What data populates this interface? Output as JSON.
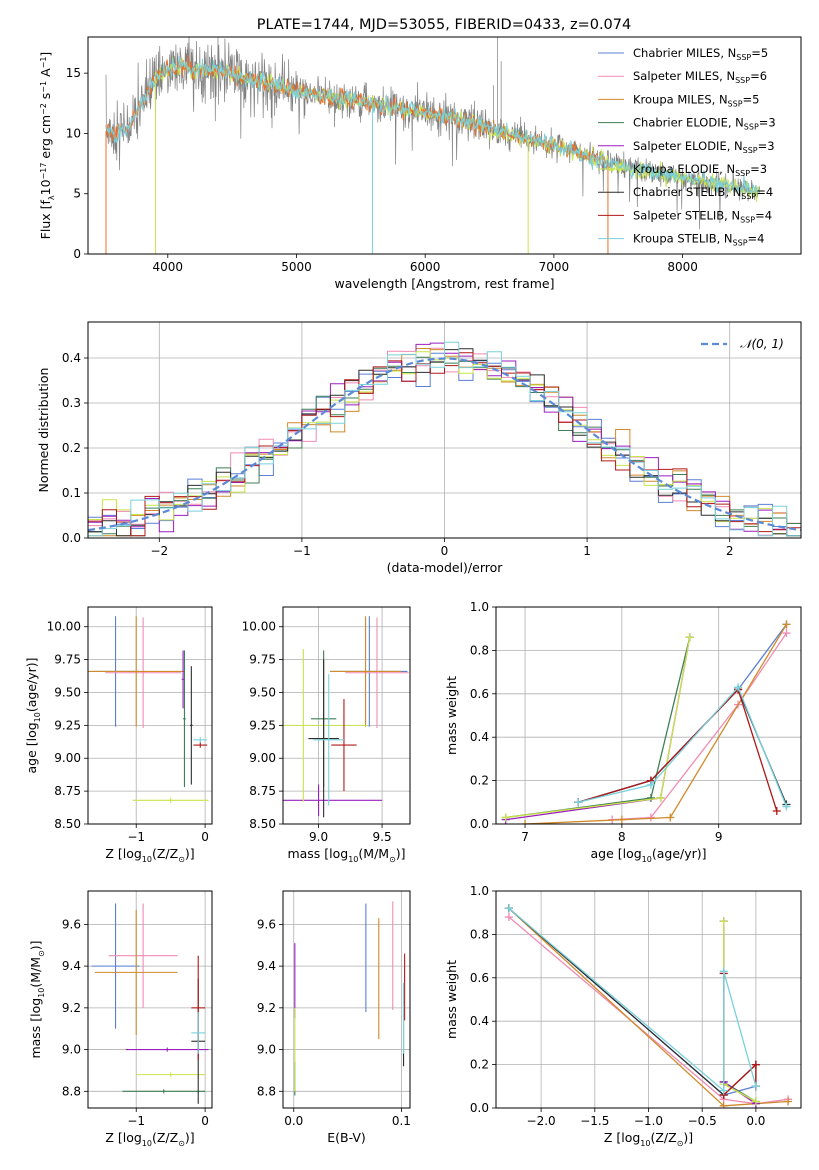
{
  "figure_title": "PLATE=1744, MJD=53055, FIBERID=0433, z=0.074",
  "colors": {
    "Chabrier MILES": "#5b7fd6",
    "Salpeter MILES": "#f08bb3",
    "Kroupa MILES": "#d08a2a",
    "Chabrier ELODIE": "#3f7f55",
    "Salpeter ELODIE": "#9b1fbf",
    "Kroupa ELODIE": "#c9e34a",
    "Chabrier STELIB": "#2d2d2d",
    "Salpeter STELIB": "#b01818",
    "Kroupa STELIB": "#79d1dc",
    "data": "#808080",
    "fit_main": "#e8702a",
    "normal_curve": "#5b8ad6"
  },
  "chart_data": [
    {
      "id": "spectrum",
      "type": "line",
      "title": "PLATE=1744, MJD=53055, FIBERID=0433, z=0.074",
      "xlabel": "wavelength [Angstrom, rest frame]",
      "ylabel": "Flux [fλ10⁻¹⁷ erg cm⁻² s⁻¹ A⁻¹]",
      "xlim": [
        3380,
        8920
      ],
      "ylim": [
        0,
        18
      ],
      "xticks": [
        4000,
        5000,
        6000,
        7000,
        8000
      ],
      "yticks": [
        0,
        5,
        10,
        15
      ],
      "grid": false,
      "legend_position": "top-right",
      "legend": [
        {
          "label": "Chabrier MILES, N",
          "sub": "SSP",
          "value": "=5"
        },
        {
          "label": "Salpeter MILES, N",
          "sub": "SSP",
          "value": "=6"
        },
        {
          "label": "Kroupa MILES, N",
          "sub": "SSP",
          "value": "=5"
        },
        {
          "label": "Chabrier ELODIE, N",
          "sub": "SSP",
          "value": "=3"
        },
        {
          "label": "Salpeter ELODIE, N",
          "sub": "SSP",
          "value": "=3"
        },
        {
          "label": "Kroupa ELODIE, N",
          "sub": "SSP",
          "value": "=3"
        },
        {
          "label": "Chabrier STELIB, N",
          "sub": "SSP",
          "value": "=4"
        },
        {
          "label": "Salpeter STELIB, N",
          "sub": "SSP",
          "value": "=4"
        },
        {
          "label": "Kroupa STELIB, N",
          "sub": "SSP",
          "value": "=4"
        }
      ],
      "continuum": {
        "x": [
          3520,
          3600,
          3700,
          3800,
          3900,
          4000,
          4100,
          4200,
          4400,
          4600,
          4800,
          5000,
          5200,
          5400,
          5600,
          5800,
          6000,
          6200,
          6400,
          6600,
          6800,
          7000,
          7200,
          7400,
          7600,
          7800,
          8000,
          8200,
          8400,
          8600
        ],
        "y": [
          10.2,
          10.0,
          10.6,
          12.5,
          14.5,
          15.3,
          15.6,
          15.2,
          15.2,
          14.6,
          14.2,
          13.5,
          13.0,
          12.8,
          12.4,
          12.1,
          11.7,
          11.3,
          10.8,
          10.1,
          9.5,
          9.0,
          8.4,
          7.6,
          7.0,
          6.7,
          6.4,
          6.0,
          5.6,
          5.2
        ]
      }
    },
    {
      "id": "residual_histogram",
      "type": "line",
      "xlabel": "(data-model)/error",
      "ylabel": "Normed distribution",
      "xlim": [
        -2.5,
        2.5
      ],
      "ylim": [
        0,
        0.48
      ],
      "xticks": [
        -2,
        -1,
        0,
        1,
        2
      ],
      "yticks": [
        0.0,
        0.1,
        0.2,
        0.3,
        0.4
      ],
      "grid": true,
      "legend_position": "top-right",
      "legend": [
        {
          "label": "𝒩(0, 1)"
        }
      ],
      "bin_width": 0.1,
      "normal_curve": {
        "mean": 0,
        "sigma": 1
      }
    },
    {
      "id": "age_vs_Z",
      "type": "scatter",
      "xlabel": "Z [log₁₀(Z/Z⊙)]",
      "ylabel": "age  [log₁₀(age/yr)]",
      "xlim": [
        -1.7,
        0.1
      ],
      "ylim": [
        8.5,
        10.15
      ],
      "xticks": [
        -1,
        0
      ],
      "yticks": [
        8.5,
        8.75,
        9.0,
        9.25,
        9.5,
        9.75,
        10.0
      ],
      "grid": true,
      "points": [
        {
          "model": "Chabrier MILES",
          "x": -1.3,
          "xerr": 0.35,
          "y": 9.66,
          "yerr": 0.42
        },
        {
          "model": "Salpeter MILES",
          "x": -0.9,
          "xerr": 0.55,
          "y": 9.65,
          "yerr": 0.42
        },
        {
          "model": "Kroupa MILES",
          "x": -1.0,
          "xerr": 0.7,
          "y": 9.66,
          "yerr": 0.42
        },
        {
          "model": "Chabrier ELODIE",
          "x": -0.3,
          "xerr": 0.02,
          "y": 9.3,
          "yerr": 0.52
        },
        {
          "model": "Salpeter ELODIE",
          "x": -0.32,
          "xerr": 0.02,
          "y": 9.6,
          "yerr": 0.22
        },
        {
          "model": "Kroupa ELODIE",
          "x": -0.5,
          "xerr": 0.55,
          "y": 8.68,
          "yerr": 0.02
        },
        {
          "model": "Chabrier STELIB",
          "x": -0.2,
          "xerr": 0.02,
          "y": 9.25,
          "yerr": 0.45
        },
        {
          "model": "Salpeter STELIB",
          "x": -0.07,
          "xerr": 0.1,
          "y": 9.1,
          "yerr": 0.02
        },
        {
          "model": "Kroupa STELIB",
          "x": -0.07,
          "xerr": 0.1,
          "y": 9.14,
          "yerr": 0.02
        }
      ]
    },
    {
      "id": "age_vs_mass",
      "type": "scatter",
      "xlabel": "mass [log₁₀(M/M⊙)]",
      "ylabel": "",
      "xlim": [
        8.72,
        9.72
      ],
      "ylim": [
        8.5,
        10.15
      ],
      "xticks": [
        9.0,
        9.5
      ],
      "yticks": [
        8.5,
        8.75,
        9.0,
        9.25,
        9.5,
        9.75,
        10.0
      ],
      "grid": true,
      "points": [
        {
          "model": "Chabrier MILES",
          "x": 9.4,
          "xerr": 0.3,
          "y": 9.66,
          "yerr": 0.42
        },
        {
          "model": "Salpeter MILES",
          "x": 9.46,
          "xerr": 0.25,
          "y": 9.65,
          "yerr": 0.42
        },
        {
          "model": "Kroupa MILES",
          "x": 9.37,
          "xerr": 0.28,
          "y": 9.66,
          "yerr": 0.42
        },
        {
          "model": "Chabrier ELODIE",
          "x": 9.04,
          "xerr": 0.1,
          "y": 9.3,
          "yerr": 0.52
        },
        {
          "model": "Salpeter ELODIE",
          "x": 9.0,
          "xerr": 0.5,
          "y": 8.68,
          "yerr": 0.12
        },
        {
          "model": "Kroupa ELODIE",
          "x": 8.88,
          "xerr": 0.5,
          "y": 9.25,
          "yerr": 0.58
        },
        {
          "model": "Chabrier STELIB",
          "x": 9.04,
          "xerr": 0.12,
          "y": 9.15,
          "yerr": 0.6
        },
        {
          "model": "Salpeter STELIB",
          "x": 9.2,
          "xerr": 0.1,
          "y": 9.1,
          "yerr": 0.35
        },
        {
          "model": "Kroupa STELIB",
          "x": 9.08,
          "xerr": 0.12,
          "y": 9.14,
          "yerr": 0.5
        }
      ]
    },
    {
      "id": "mass_weight_vs_age",
      "type": "line",
      "xlabel": "age  [log₁₀(age/yr)]",
      "ylabel": "mass weight",
      "xlim": [
        6.7,
        9.85
      ],
      "ylim": [
        0,
        1.0
      ],
      "xticks": [
        7,
        8,
        9
      ],
      "yticks": [
        0.0,
        0.2,
        0.4,
        0.6,
        0.8,
        1.0
      ],
      "grid": true,
      "series": [
        {
          "model": "Chabrier MILES",
          "x": [
            7.55,
            8.3,
            9.2,
            9.7
          ],
          "y": [
            0.1,
            0.2,
            0.62,
            0.92
          ]
        },
        {
          "model": "Salpeter MILES",
          "x": [
            7.9,
            8.3,
            9.2,
            9.7
          ],
          "y": [
            0.02,
            0.03,
            0.55,
            0.88
          ]
        },
        {
          "model": "Kroupa MILES",
          "x": [
            7.0,
            8.0,
            8.5,
            9.7
          ],
          "y": [
            0.0,
            0.02,
            0.03,
            0.92
          ]
        },
        {
          "model": "Chabrier ELODIE",
          "x": [
            6.8,
            8.3,
            8.7
          ],
          "y": [
            0.03,
            0.12,
            0.86
          ]
        },
        {
          "model": "Salpeter ELODIE",
          "x": [
            6.8,
            8.4,
            8.7
          ],
          "y": [
            0.02,
            0.12,
            0.86
          ]
        },
        {
          "model": "Kroupa ELODIE",
          "x": [
            6.8,
            8.4,
            8.7
          ],
          "y": [
            0.03,
            0.12,
            0.86
          ]
        },
        {
          "model": "Chabrier STELIB",
          "x": [
            7.55,
            8.3,
            9.2,
            9.7
          ],
          "y": [
            0.1,
            0.2,
            0.62,
            0.09
          ]
        },
        {
          "model": "Salpeter STELIB",
          "x": [
            7.55,
            8.3,
            9.2,
            9.6
          ],
          "y": [
            0.1,
            0.2,
            0.62,
            0.06
          ]
        },
        {
          "model": "Kroupa STELIB",
          "x": [
            7.55,
            8.3,
            9.2,
            9.7
          ],
          "y": [
            0.1,
            0.18,
            0.63,
            0.08
          ]
        }
      ]
    },
    {
      "id": "mass_vs_Z",
      "type": "scatter",
      "xlabel": "Z [log₁₀(Z/Z⊙)]",
      "ylabel": "mass [log₁₀(M/M⊙)]",
      "xlim": [
        -1.7,
        0.1
      ],
      "ylim": [
        8.72,
        9.76
      ],
      "xticks": [
        -1,
        0
      ],
      "yticks": [
        8.8,
        9.0,
        9.2,
        9.4,
        9.6
      ],
      "grid": true,
      "points": [
        {
          "model": "Chabrier MILES",
          "x": -1.3,
          "xerr": 0.35,
          "y": 9.4,
          "yerr": 0.3
        },
        {
          "model": "Salpeter MILES",
          "x": -0.9,
          "xerr": 0.5,
          "y": 9.45,
          "yerr": 0.25
        },
        {
          "model": "Kroupa MILES",
          "x": -1.0,
          "xerr": 0.6,
          "y": 9.37,
          "yerr": 0.3
        },
        {
          "model": "Chabrier ELODIE",
          "x": -0.6,
          "xerr": 0.6,
          "y": 8.8,
          "yerr": 0.01
        },
        {
          "model": "Salpeter ELODIE",
          "x": -0.55,
          "xerr": 0.6,
          "y": 9.0,
          "yerr": 0.01
        },
        {
          "model": "Kroupa ELODIE",
          "x": -0.5,
          "xerr": 0.5,
          "y": 8.88,
          "yerr": 0.01
        },
        {
          "model": "Chabrier STELIB",
          "x": -0.1,
          "xerr": 0.1,
          "y": 9.04,
          "yerr": 0.3
        },
        {
          "model": "Salpeter STELIB",
          "x": -0.1,
          "xerr": 0.1,
          "y": 9.2,
          "yerr": 0.25
        },
        {
          "model": "Kroupa STELIB",
          "x": -0.1,
          "xerr": 0.1,
          "y": 9.08,
          "yerr": 0.1
        }
      ]
    },
    {
      "id": "mass_vs_ebv",
      "type": "scatter",
      "xlabel": "E(B-V)",
      "ylabel": "",
      "xlim": [
        -0.01,
        0.108
      ],
      "ylim": [
        8.72,
        9.76
      ],
      "xticks": [
        0.0,
        0.1
      ],
      "yticks": [
        8.8,
        9.0,
        9.2,
        9.4,
        9.6
      ],
      "grid": true,
      "points": [
        {
          "model": "Chabrier MILES",
          "x": 0.067,
          "xerr": 0,
          "y": 9.44,
          "yerr": 0.26
        },
        {
          "model": "Salpeter MILES",
          "x": 0.092,
          "xerr": 0,
          "y": 9.45,
          "yerr": 0.26
        },
        {
          "model": "Kroupa MILES",
          "x": 0.079,
          "xerr": 0,
          "y": 9.34,
          "yerr": 0.29
        },
        {
          "model": "Chabrier ELODIE",
          "x": 0.001,
          "xerr": 0,
          "y": 8.86,
          "yerr": 0.08
        },
        {
          "model": "Salpeter ELODIE",
          "x": 0.001,
          "xerr": 0,
          "y": 9.33,
          "yerr": 0.18
        },
        {
          "model": "Kroupa ELODIE",
          "x": 0.001,
          "xerr": 0,
          "y": 9.0,
          "yerr": 0.2
        },
        {
          "model": "Chabrier STELIB",
          "x": 0.102,
          "xerr": 0,
          "y": 9.06,
          "yerr": 0.14
        },
        {
          "model": "Salpeter STELIB",
          "x": 0.103,
          "xerr": 0,
          "y": 9.3,
          "yerr": 0.16
        },
        {
          "model": "Kroupa STELIB",
          "x": 0.102,
          "xerr": 0,
          "y": 9.15,
          "yerr": 0.17
        }
      ]
    },
    {
      "id": "mass_weight_vs_Z",
      "type": "line",
      "xlabel": "Z [log₁₀(Z/Z⊙)]",
      "ylabel": "mass weight",
      "xlim": [
        -2.42,
        0.42
      ],
      "ylim": [
        0,
        1.0
      ],
      "xticks": [
        -2.0,
        -1.5,
        -1.0,
        -0.5,
        0.0
      ],
      "yticks": [
        0.0,
        0.2,
        0.4,
        0.6,
        0.8,
        1.0
      ],
      "grid": true,
      "series": [
        {
          "model": "Chabrier MILES",
          "x": [
            -2.3,
            -0.3,
            0.0
          ],
          "y": [
            0.92,
            0.06,
            0.1
          ]
        },
        {
          "model": "Salpeter MILES",
          "x": [
            -2.3,
            -0.3,
            0.0,
            0.3
          ],
          "y": [
            0.88,
            0.04,
            0.02,
            0.04
          ]
        },
        {
          "model": "Kroupa MILES",
          "x": [
            -2.3,
            -0.3,
            0.3
          ],
          "y": [
            0.92,
            0.01,
            0.03
          ]
        },
        {
          "model": "Chabrier ELODIE",
          "x": [
            -0.3,
            -0.3,
            0.0
          ],
          "y": [
            0.86,
            0.12,
            0.03
          ]
        },
        {
          "model": "Salpeter ELODIE",
          "x": [
            -0.3,
            -0.3,
            0.0
          ],
          "y": [
            0.86,
            0.12,
            0.02
          ]
        },
        {
          "model": "Kroupa ELODIE",
          "x": [
            -0.3,
            -0.3,
            0.0
          ],
          "y": [
            0.86,
            0.11,
            0.03
          ]
        },
        {
          "model": "Chabrier STELIB",
          "x": [
            -2.3,
            -0.3,
            0.0,
            0.0
          ],
          "y": [
            0.92,
            0.06,
            0.2,
            0.1
          ]
        },
        {
          "model": "Salpeter STELIB",
          "x": [
            -0.3,
            -0.3,
            0.0,
            0.0
          ],
          "y": [
            0.62,
            0.06,
            0.2,
            0.1
          ]
        },
        {
          "model": "Kroupa STELIB",
          "x": [
            -2.3,
            -0.3,
            -0.3,
            0.0
          ],
          "y": [
            0.92,
            0.08,
            0.63,
            0.1
          ]
        }
      ]
    }
  ]
}
